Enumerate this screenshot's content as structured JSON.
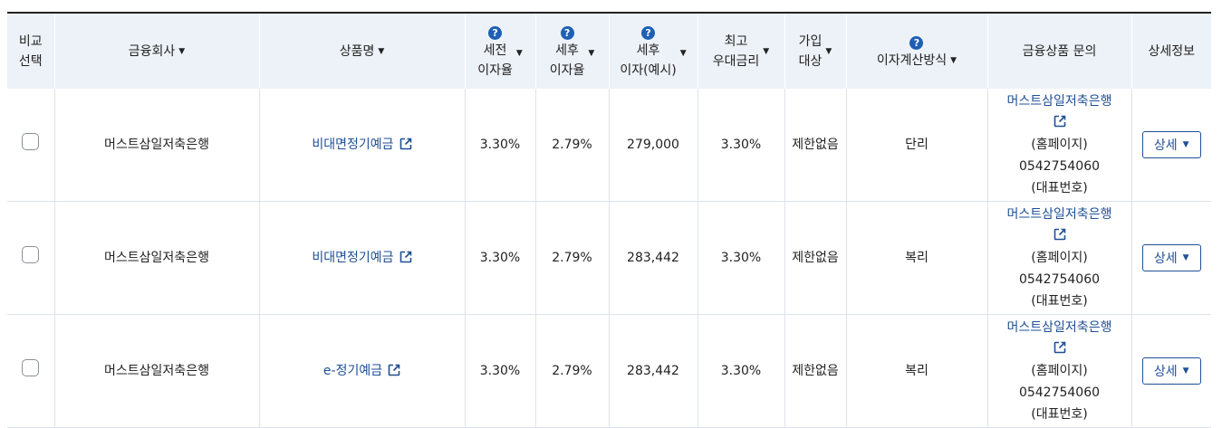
{
  "headers": {
    "compare": [
      "비교",
      "선택"
    ],
    "company": "금융회사",
    "product": "상품명",
    "pre_tax": [
      "세전",
      "이자율"
    ],
    "post_tax": [
      "세후",
      "이자율"
    ],
    "post_tax_interest": [
      "세후",
      "이자(예시)"
    ],
    "max_rate": [
      "최고",
      "우대금리"
    ],
    "eligibility": [
      "가입",
      "대상"
    ],
    "calc_method": "이자계산방식",
    "inquiry": "금융상품 문의",
    "detail": "상세정보",
    "help_glyph": "?"
  },
  "rows": [
    {
      "company": "머스트삼일저축은행",
      "product": "비대면정기예금",
      "pre_tax_rate": "3.30%",
      "post_tax_rate": "2.79%",
      "post_tax_interest": "279,000",
      "max_rate": "3.30%",
      "eligibility": "제한없음",
      "calc_method": "단리",
      "inquiry_link": "머스트삼일저축은행",
      "inquiry_home": "(홈페이지)",
      "inquiry_phone": "0542754060",
      "inquiry_phone_label": "(대표번호)",
      "detail_label": "상세"
    },
    {
      "company": "머스트삼일저축은행",
      "product": "비대면정기예금",
      "pre_tax_rate": "3.30%",
      "post_tax_rate": "2.79%",
      "post_tax_interest": "283,442",
      "max_rate": "3.30%",
      "eligibility": "제한없음",
      "calc_method": "복리",
      "inquiry_link": "머스트삼일저축은행",
      "inquiry_home": "(홈페이지)",
      "inquiry_phone": "0542754060",
      "inquiry_phone_label": "(대표번호)",
      "detail_label": "상세"
    },
    {
      "company": "머스트삼일저축은행",
      "product": "e-정기예금",
      "pre_tax_rate": "3.30%",
      "post_tax_rate": "2.79%",
      "post_tax_interest": "283,442",
      "max_rate": "3.30%",
      "eligibility": "제한없음",
      "calc_method": "복리",
      "inquiry_link": "머스트삼일저축은행",
      "inquiry_home": "(홈페이지)",
      "inquiry_phone": "0542754060",
      "inquiry_phone_label": "(대표번호)",
      "detail_label": "상세"
    }
  ],
  "icons": {
    "sort": "caret-down-icon",
    "help": "question-circle-icon",
    "external": "external-link-icon"
  },
  "colors": {
    "header_bg": "#edf2f8",
    "link": "#1f4f95",
    "help_icon": "#1f5fb5"
  }
}
